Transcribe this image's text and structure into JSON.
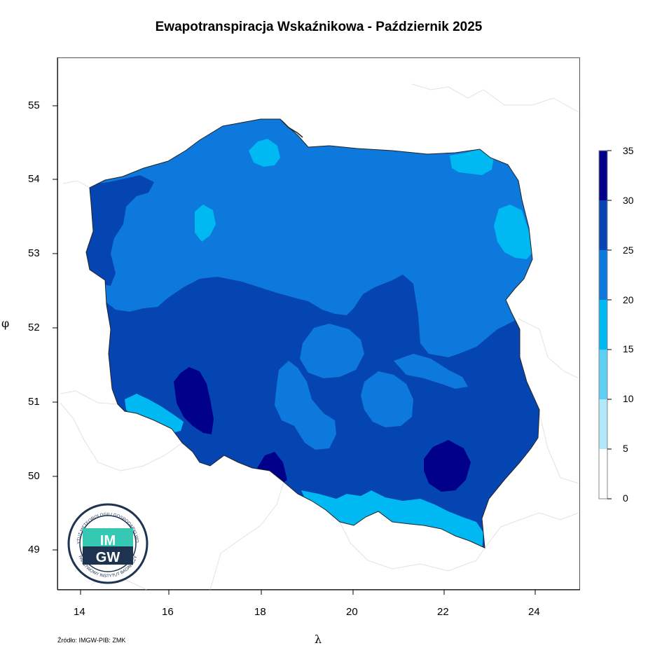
{
  "title": "Ewapotranspiracja Wskaźnikowa - Październik 2025",
  "xlabel": "λ",
  "ylabel": "φ",
  "source": "Źródło: IMGW-PIB: ZMK",
  "x_ticks": [
    "14",
    "16",
    "18",
    "20",
    "22",
    "24"
  ],
  "y_ticks": [
    "55",
    "54",
    "53",
    "52",
    "51",
    "50",
    "49"
  ],
  "legend": {
    "ticks": [
      "35",
      "30",
      "25",
      "20",
      "15",
      "10",
      "5",
      "0"
    ],
    "bins": [
      {
        "range": "30-35",
        "color": "#00008b"
      },
      {
        "range": "25-30",
        "color": "#0545b2"
      },
      {
        "range": "20-25",
        "color": "#0d79dc"
      },
      {
        "range": "15-20",
        "color": "#00b8f2"
      },
      {
        "range": "10-15",
        "color": "#5dcff5"
      },
      {
        "range": "5-10",
        "color": "#b3e8fb"
      },
      {
        "range": "0-5",
        "color": "#ffffff"
      }
    ]
  },
  "logo": {
    "main": "IMGW",
    "ring_top": "INSTYTUT METEOROLOGII I GOSPODARKI WODNEJ",
    "ring_bottom": "PAŃSTWOWY INSTYTUT BADAWCZY"
  },
  "colors": {
    "accent_teal": "#35c9b4",
    "logo_navy": "#1e3350"
  }
}
